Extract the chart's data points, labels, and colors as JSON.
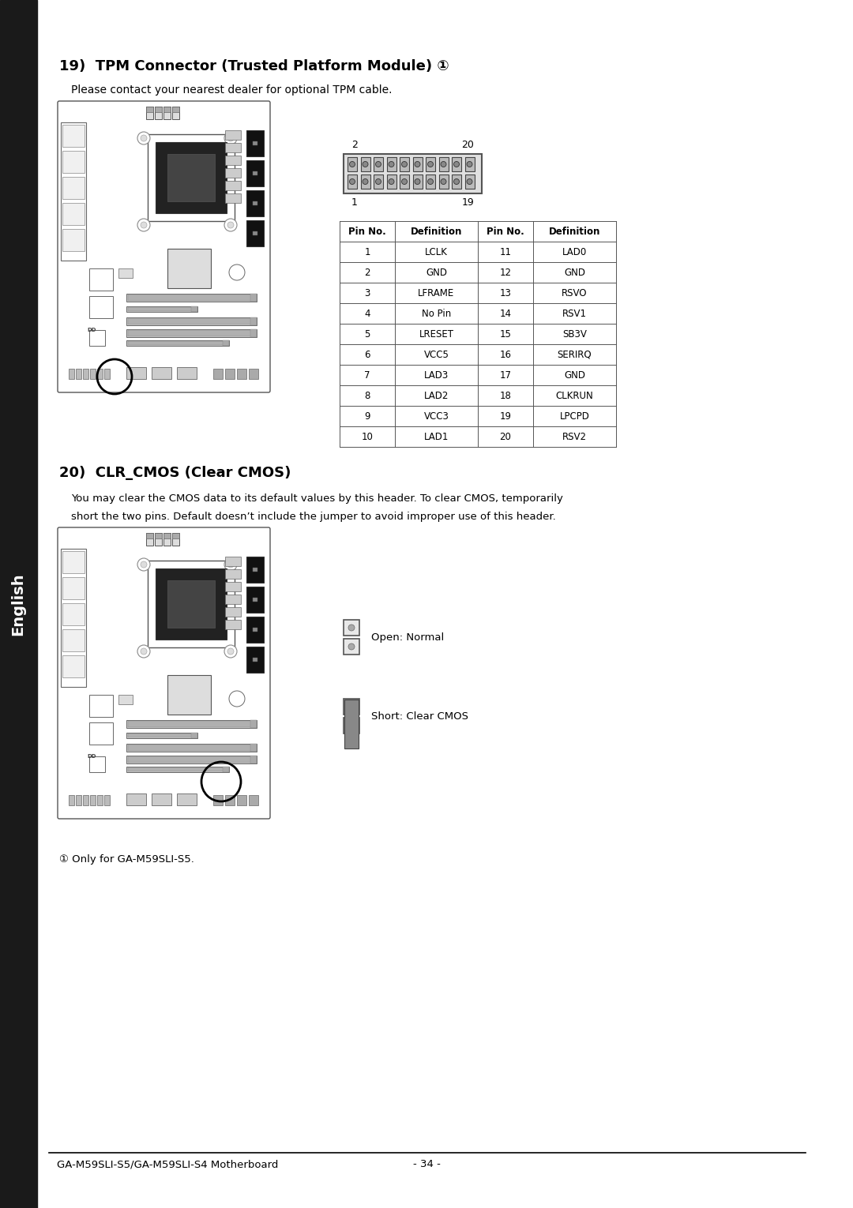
{
  "bg_color": "#ffffff",
  "sidebar_color": "#1a1a1a",
  "sidebar_text": "English",
  "section19_title": "19)  TPM Connector (Trusted Platform Module) ①",
  "section19_sub": "Please contact your nearest dealer for optional TPM cable.",
  "section20_title": "20)  CLR_CMOS (Clear CMOS)",
  "section20_text1": "You may clear the CMOS data to its default values by this header. To clear CMOS, temporarily",
  "section20_text2": "short the two pins. Default doesn’t include the jumper to avoid improper use of this header.",
  "connector_label_2": "2",
  "connector_label_20": "20",
  "connector_label_1": "1",
  "connector_label_19": "19",
  "table_headers": [
    "Pin No.",
    "Definition",
    "Pin No.",
    "Definition"
  ],
  "table_data": [
    [
      "1",
      "LCLK",
      "11",
      "LAD0"
    ],
    [
      "2",
      "GND",
      "12",
      "GND"
    ],
    [
      "3",
      "LFRAME",
      "13",
      "RSVO"
    ],
    [
      "4",
      "No Pin",
      "14",
      "RSV1"
    ],
    [
      "5",
      "LRESET",
      "15",
      "SB3V"
    ],
    [
      "6",
      "VCC5",
      "16",
      "SERIRQ"
    ],
    [
      "7",
      "LAD3",
      "17",
      "GND"
    ],
    [
      "8",
      "LAD2",
      "18",
      "CLKRUN"
    ],
    [
      "9",
      "VCC3",
      "19",
      "LPCPD"
    ],
    [
      "10",
      "LAD1",
      "20",
      "RSV2"
    ]
  ],
  "open_normal_label": "Open: Normal",
  "short_clear_label": "Short: Clear CMOS",
  "footnote": "① Only for GA-M59SLI-S5.",
  "footer_text": "GA-M59SLI-S5/GA-M59SLI-S4 Motherboard",
  "footer_page": "- 34 -"
}
